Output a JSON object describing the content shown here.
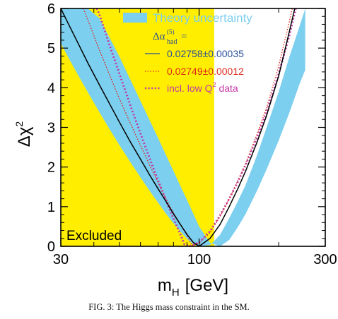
{
  "chart_data": {
    "type": "line",
    "xlabel_main": "m",
    "xlabel_sub": "H",
    "xlabel_unit": "[GeV]",
    "ylabel_main": "Δχ",
    "ylabel_sup": "2",
    "x_scale": "log",
    "xlim": [
      30,
      300
    ],
    "ylim": [
      0,
      6
    ],
    "x_ticks": [
      30,
      100,
      300
    ],
    "x_tick_labels": [
      "30",
      "100",
      "300"
    ],
    "y_ticks": [
      0,
      1,
      2,
      3,
      4,
      5,
      6
    ],
    "y_tick_labels": [
      "0",
      "1",
      "2",
      "3",
      "4",
      "5",
      "6"
    ],
    "excluded_region": {
      "label": "Excluded",
      "x_range": [
        30,
        114
      ],
      "color": "#ffee00"
    },
    "legend": {
      "band_label": "Theory uncertainty",
      "header_base": "Δα",
      "header_sup": "(5)",
      "header_sub": "had",
      "header_eq": "=",
      "entries": [
        {
          "label": "0.02758±0.00035",
          "color": "#2a4f9a",
          "style": "solid"
        },
        {
          "label": "0.02749±0.00012",
          "color": "#dd2a1e",
          "style": "dotted"
        },
        {
          "label": "incl. low Q",
          "label_sup": "2",
          "label_tail": " data",
          "color": "#c03aa6",
          "style": "dotted"
        }
      ]
    },
    "series": [
      {
        "style": "band",
        "color": "#7ccfef",
        "x": [
          30,
          32,
          35,
          38,
          42,
          46,
          50,
          55,
          60,
          65,
          70,
          75,
          80,
          85,
          90,
          95,
          100,
          110,
          120,
          130,
          140,
          150,
          165,
          180,
          200,
          220,
          240,
          252
        ],
        "y_low": [
          5.12,
          4.77,
          4.3,
          3.88,
          3.38,
          2.94,
          2.55,
          2.12,
          1.74,
          1.4,
          1.1,
          0.82,
          0.58,
          0.37,
          0.19,
          0.05,
          0.0,
          0.03,
          0.29,
          0.71,
          1.13,
          1.55,
          2.27,
          3.0,
          3.9,
          4.8,
          5.56,
          6.0
        ],
        "y_high": [
          6.0,
          6.0,
          6.0,
          6.0,
          5.75,
          5.25,
          4.78,
          4.2,
          3.67,
          3.18,
          2.73,
          2.3,
          1.9,
          1.52,
          1.17,
          0.83,
          0.5,
          0.09,
          0.0,
          0.16,
          0.48,
          0.82,
          1.38,
          1.94,
          2.67,
          3.39,
          4.1,
          4.45
        ]
      },
      {
        "style": "solid",
        "color": "#000000",
        "x": [
          30,
          32,
          35,
          38,
          42,
          46,
          50,
          55,
          60,
          65,
          70,
          75,
          80,
          85,
          90,
          95,
          100,
          110,
          120,
          130,
          140,
          150,
          165,
          180,
          200,
          220,
          230
        ],
        "y": [
          6.0,
          5.62,
          5.1,
          4.62,
          4.07,
          3.58,
          3.13,
          2.63,
          2.2,
          1.8,
          1.45,
          1.13,
          0.82,
          0.55,
          0.3,
          0.1,
          0.0,
          0.2,
          0.55,
          1.0,
          1.45,
          1.9,
          2.6,
          3.3,
          4.3,
          5.45,
          6.0
        ]
      },
      {
        "style": "dotted",
        "color": "#dd2a1e",
        "x": [
          36.5,
          38,
          42,
          46,
          50,
          55,
          60,
          65,
          70,
          75,
          80,
          85,
          90,
          94,
          100,
          110,
          120,
          130,
          140,
          150,
          165,
          180,
          200,
          220,
          225
        ],
        "y": [
          6.0,
          5.7,
          4.95,
          4.3,
          3.72,
          3.1,
          2.55,
          2.05,
          1.6,
          1.2,
          0.85,
          0.55,
          0.28,
          0.02,
          0.08,
          0.35,
          0.75,
          1.2,
          1.65,
          2.1,
          2.8,
          3.5,
          4.55,
          5.7,
          6.0
        ]
      },
      {
        "style": "dotted",
        "color": "#c03aa6",
        "x": [
          41,
          42,
          46,
          50,
          55,
          60,
          65,
          70,
          75,
          80,
          85,
          88,
          92,
          100,
          110,
          120,
          130,
          140,
          150,
          165,
          180,
          200,
          220,
          232
        ],
        "y": [
          6.0,
          5.85,
          5.05,
          4.35,
          3.55,
          2.85,
          2.22,
          1.66,
          1.16,
          0.7,
          0.3,
          0.05,
          0.0,
          0.1,
          0.38,
          0.78,
          1.2,
          1.62,
          2.05,
          2.72,
          3.38,
          4.35,
          5.35,
          6.0
        ]
      }
    ]
  },
  "caption": "FIG. 3: The Higgs mass constraint in the SM."
}
